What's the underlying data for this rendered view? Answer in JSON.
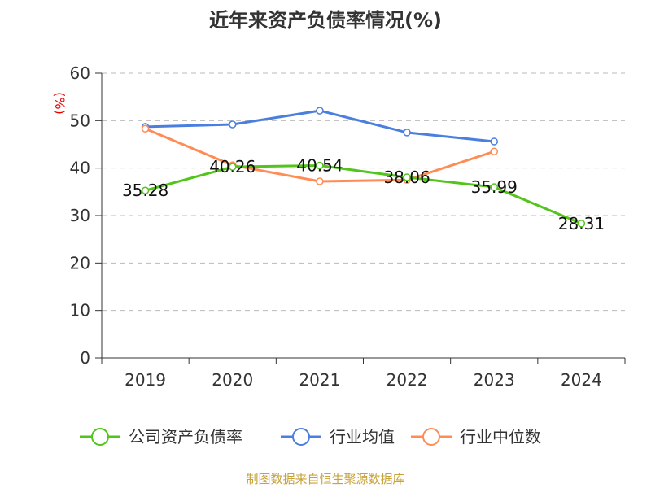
{
  "chart_data": {
    "type": "line",
    "title": "近年来资产负债率情况(%)",
    "ylabel": "(%)",
    "xlabel": "",
    "categories": [
      "2019",
      "2020",
      "2021",
      "2022",
      "2023",
      "2024"
    ],
    "ylim": [
      0,
      60
    ],
    "yticks": [
      0,
      10,
      20,
      30,
      40,
      50,
      60
    ],
    "grid": true,
    "legend_position": "bottom",
    "series": [
      {
        "name": "公司资产负债率",
        "color": "#52c41a",
        "values": [
          35.28,
          40.26,
          40.54,
          38.06,
          35.99,
          28.31
        ],
        "labels": [
          "35.28",
          "40.26",
          "40.54",
          "38.06",
          "35.99",
          "28.31"
        ]
      },
      {
        "name": "行业均值",
        "color": "#4a7fe0",
        "values": [
          48.7,
          49.2,
          52.1,
          47.5,
          45.6,
          null
        ]
      },
      {
        "name": "行业中位数",
        "color": "#ff8c55",
        "values": [
          48.3,
          40.6,
          37.2,
          37.5,
          43.5,
          null
        ]
      }
    ]
  },
  "source": "制图数据来自恒生聚源数据库"
}
